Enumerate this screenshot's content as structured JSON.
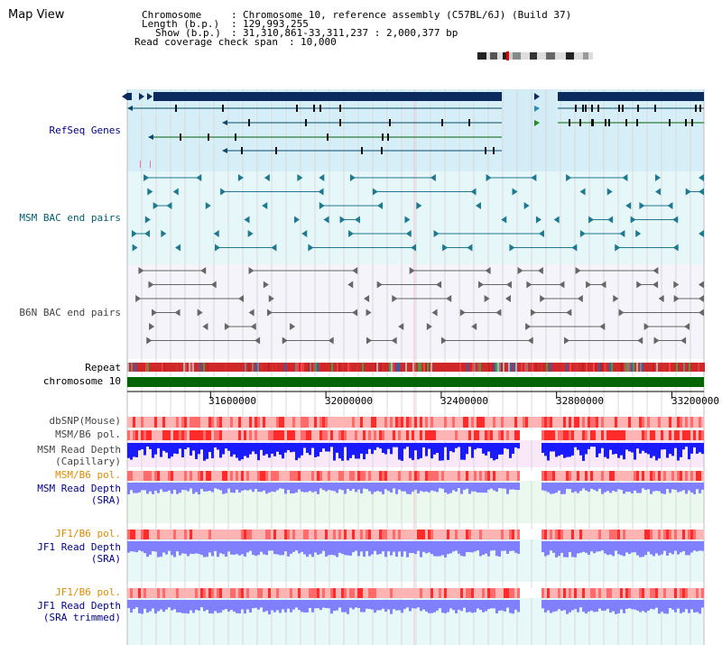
{
  "header": {
    "title": "Map View",
    "chromosome_label": "Chromosome",
    "chromosome_value": "Chromosome 10, reference assembly (C57BL/6J) (Build 37)",
    "length_label": "Length (b.p.)",
    "length_value": "129,993,255",
    "show_label": "Show (b.p.)",
    "show_value": "31,310,861-33,311,237 : 2,000,377 bp",
    "read_cov_label": "Read coverage check span",
    "read_cov_value": "10,000",
    "sep": ":"
  },
  "tracks": {
    "refseq": "RefSeq Genes",
    "msm_bac": "MSM BAC end pairs",
    "b6n_bac": "B6N BAC end pairs",
    "repeat": "Repeat",
    "chromosome": "chromosome 10",
    "dbsnp": "dbSNP(Mouse)",
    "msm_b6_pol_1": "MSM/B6 pol.",
    "msm_read_depth_cap_1": "MSM Read Depth",
    "msm_read_depth_cap_2": "(Capillary)",
    "msm_b6_pol_2": "MSM/B6 pol.",
    "msm_read_depth_sra_1": "MSM Read Depth",
    "msm_read_depth_sra_2": "(SRA)",
    "jf1_b6_pol_1": "JF1/B6 pol.",
    "jf1_read_depth_sra_1": "JF1 Read Depth",
    "jf1_read_depth_sra_2": "(SRA)",
    "jf1_b6_pol_2": "JF1/B6 pol.",
    "jf1_read_depth_trim_1": "JF1 Read Depth",
    "jf1_read_depth_trim_2": "(SRA trimmed)"
  },
  "axis": {
    "ticks": [
      "31600000",
      "32000000",
      "32400000",
      "32800000",
      "33200000"
    ],
    "tick_values": [
      31600000,
      32000000,
      32400000,
      32800000,
      33200000
    ],
    "range": [
      31310861,
      33311237
    ]
  },
  "colors": {
    "refseq_bg": "#d6eef8",
    "gene": "#0b2a5e",
    "msm_bac": "#1e7890",
    "b6n_bac": "#666666",
    "chromosome": "#006400",
    "snp_strong": "#ff2a2a",
    "snp_weak": "#ffb8b8",
    "depth_cap": "#1a1aff",
    "depth_sra": "#8080ff",
    "label_blue": "#00008b",
    "label_orange": "#e08a00"
  }
}
